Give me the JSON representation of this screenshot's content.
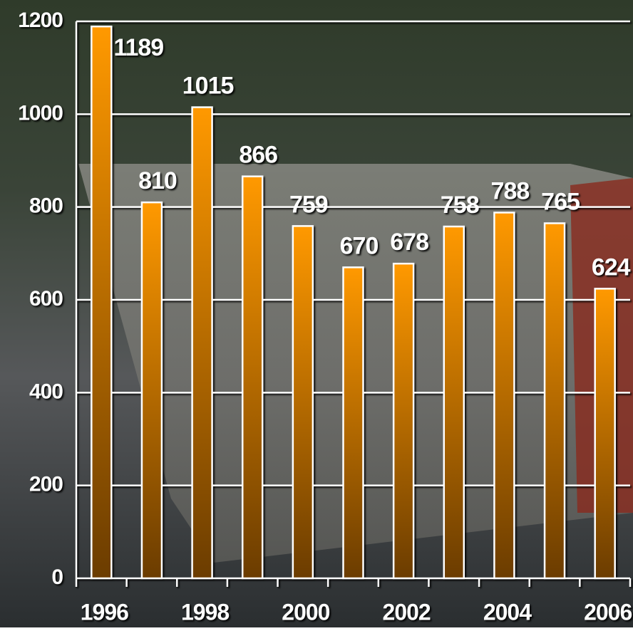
{
  "chart_data": {
    "type": "bar",
    "categories": [
      "1996",
      null,
      "1998",
      null,
      "2000",
      null,
      "2002",
      null,
      "2004",
      null,
      "2006"
    ],
    "values": [
      1189,
      810,
      1015,
      866,
      759,
      670,
      678,
      758,
      788,
      765,
      624
    ],
    "color": "#ff9900",
    "ylim": [
      0,
      1200
    ],
    "yticks": [
      0,
      200,
      400,
      600,
      800,
      1000,
      1200
    ],
    "grid": true
  }
}
